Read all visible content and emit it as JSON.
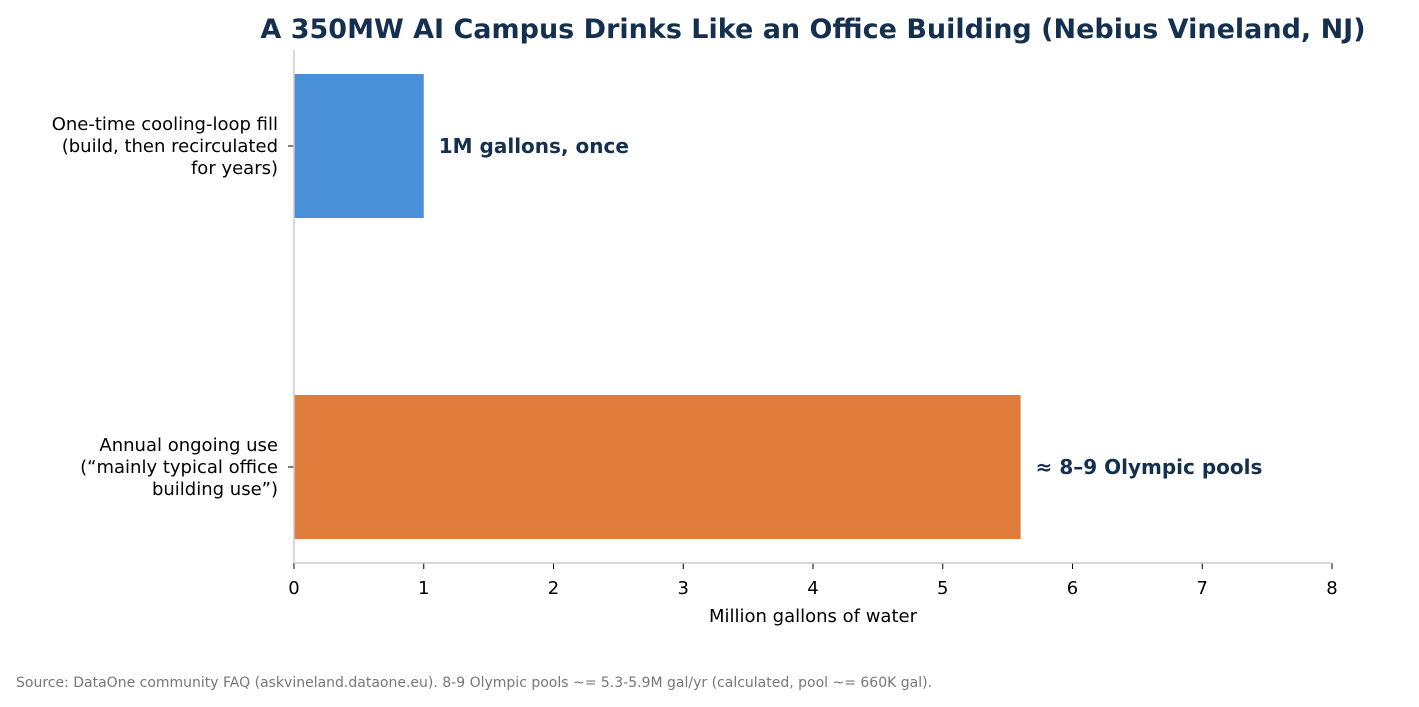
{
  "chart_data": {
    "type": "bar",
    "orientation": "horizontal",
    "title": "A 350MW AI Campus Drinks Like an Office Building (Nebius Vineland, NJ)",
    "xlabel": "Million gallons of water",
    "xlim": [
      0,
      8
    ],
    "xticks": [
      0,
      1,
      2,
      3,
      4,
      5,
      6,
      7,
      8
    ],
    "grid": false,
    "categories": [
      [
        "One-time cooling-loop fill",
        "(build, then recirculated",
        "for years)"
      ],
      [
        "Annual ongoing use",
        "(“mainly typical office",
        "building use”)"
      ]
    ],
    "values": [
      1,
      5.6
    ],
    "annotations": [
      "1M gallons, once",
      "≈ 8–9 Olympic pools"
    ],
    "colors": [
      "#4a90d9",
      "#e07c3c"
    ]
  },
  "source_note": "Source: DataOne community FAQ (askvineland.dataone.eu). 8-9 Olympic pools ~= 5.3-5.9M gal/yr (calculated, pool ~= 660K gal)."
}
